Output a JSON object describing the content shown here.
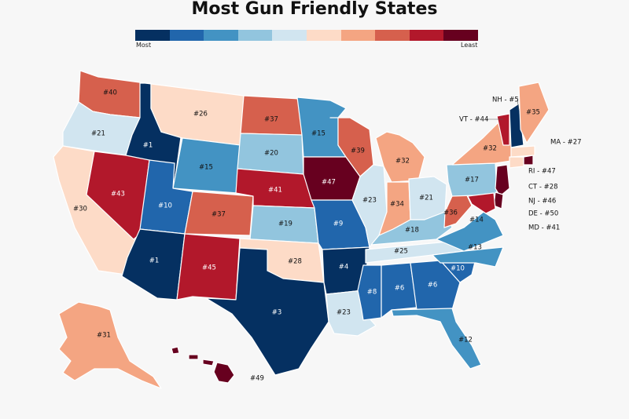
{
  "title": "Most Gun Friendly States",
  "legend": {
    "low_label": "Most",
    "high_label": "Least",
    "colors": [
      "#053061",
      "#2166ac",
      "#4393c3",
      "#92c5de",
      "#d1e5f0",
      "#fddbc7",
      "#f4a582",
      "#d6604d",
      "#b2182b",
      "#67001f"
    ]
  },
  "states": [
    {
      "abbr": "WA",
      "label": "#40",
      "rank": 40
    },
    {
      "abbr": "OR",
      "label": "#21",
      "rank": 21
    },
    {
      "abbr": "CA",
      "label": "#30",
      "rank": 30
    },
    {
      "abbr": "ID",
      "label": "#1",
      "rank": 1
    },
    {
      "abbr": "NV",
      "label": "#43",
      "rank": 43
    },
    {
      "abbr": "MT",
      "label": "#26",
      "rank": 26
    },
    {
      "abbr": "WY",
      "label": "#15",
      "rank": 15
    },
    {
      "abbr": "UT",
      "label": "#10",
      "rank": 10
    },
    {
      "abbr": "AZ",
      "label": "#1",
      "rank": 1
    },
    {
      "abbr": "CO",
      "label": "#37",
      "rank": 37
    },
    {
      "abbr": "NM",
      "label": "#45",
      "rank": 45
    },
    {
      "abbr": "ND",
      "label": "#37",
      "rank": 37
    },
    {
      "abbr": "SD",
      "label": "#20",
      "rank": 20
    },
    {
      "abbr": "NE",
      "label": "#41",
      "rank": 41
    },
    {
      "abbr": "KS",
      "label": "#19",
      "rank": 19
    },
    {
      "abbr": "OK",
      "label": "#28",
      "rank": 28
    },
    {
      "abbr": "TX",
      "label": "#3",
      "rank": 3
    },
    {
      "abbr": "MN",
      "label": "#15",
      "rank": 15
    },
    {
      "abbr": "IA",
      "label": "#47",
      "rank": 47
    },
    {
      "abbr": "MO",
      "label": "#9",
      "rank": 9
    },
    {
      "abbr": "AR",
      "label": "#4",
      "rank": 4
    },
    {
      "abbr": "LA",
      "label": "#23",
      "rank": 23
    },
    {
      "abbr": "WI",
      "label": "#39",
      "rank": 39
    },
    {
      "abbr": "IL",
      "label": "#23",
      "rank": 23
    },
    {
      "abbr": "MI",
      "label": "#32",
      "rank": 32
    },
    {
      "abbr": "IN",
      "label": "#34",
      "rank": 34
    },
    {
      "abbr": "OH",
      "label": "#21",
      "rank": 21
    },
    {
      "abbr": "KY",
      "label": "#18",
      "rank": 18
    },
    {
      "abbr": "TN",
      "label": "#25",
      "rank": 25
    },
    {
      "abbr": "MS",
      "label": "#8",
      "rank": 8
    },
    {
      "abbr": "AL",
      "label": "#6",
      "rank": 6
    },
    {
      "abbr": "GA",
      "label": "#6",
      "rank": 6
    },
    {
      "abbr": "FL",
      "label": "#12",
      "rank": 12
    },
    {
      "abbr": "SC",
      "label": "#10",
      "rank": 10
    },
    {
      "abbr": "NC",
      "label": "#13",
      "rank": 13
    },
    {
      "abbr": "VA",
      "label": "#14",
      "rank": 14
    },
    {
      "abbr": "WV",
      "label": "#36",
      "rank": 36
    },
    {
      "abbr": "PA",
      "label": "#17",
      "rank": 17
    },
    {
      "abbr": "NY",
      "label": "#32",
      "rank": 32
    },
    {
      "abbr": "VT",
      "label": "VT - #44",
      "rank": 44
    },
    {
      "abbr": "NH",
      "label": "NH - #5",
      "rank": 5
    },
    {
      "abbr": "ME",
      "label": "#35",
      "rank": 35
    },
    {
      "abbr": "MA",
      "label": "MA - #27",
      "rank": 27
    },
    {
      "abbr": "RI",
      "label": "RI - #47",
      "rank": 47
    },
    {
      "abbr": "CT",
      "label": "CT - #28",
      "rank": 28
    },
    {
      "abbr": "NJ",
      "label": "NJ - #46",
      "rank": 46
    },
    {
      "abbr": "DE",
      "label": "DE - #50",
      "rank": 50
    },
    {
      "abbr": "MD",
      "label": "MD - #41",
      "rank": 41
    },
    {
      "abbr": "AK",
      "label": "#31",
      "rank": 31
    },
    {
      "abbr": "HI",
      "label": "#49",
      "rank": 49
    }
  ]
}
